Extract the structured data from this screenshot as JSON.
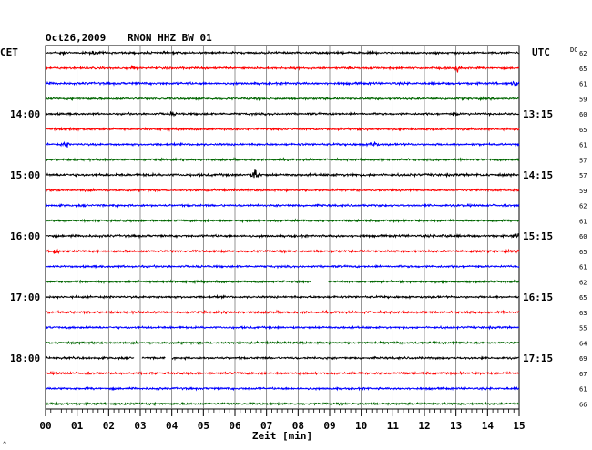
{
  "header": {
    "date": "Oct26,2009",
    "station": "RNON HHZ BW 01",
    "left_zone": "CET",
    "right_zone": "UTC",
    "dc_label": "DC"
  },
  "footer": {
    "xlabel": "Zeit [min]",
    "corner_mark": "^"
  },
  "chart_data": {
    "type": "line",
    "title": "Oct26,2009   RNON HHZ BW 01",
    "xlabel": "Zeit [min]",
    "ylabel": "",
    "xlim": [
      0,
      15
    ],
    "x_ticks": [
      "00",
      "01",
      "02",
      "03",
      "04",
      "05",
      "06",
      "07",
      "08",
      "09",
      "10",
      "11",
      "12",
      "13",
      "14",
      "15"
    ],
    "left_hour_labels": [
      {
        "row": 4,
        "label": "14:00"
      },
      {
        "row": 8,
        "label": "15:00"
      },
      {
        "row": 12,
        "label": "16:00"
      },
      {
        "row": 16,
        "label": "17:00"
      },
      {
        "row": 20,
        "label": "18:00"
      }
    ],
    "right_hour_labels": [
      {
        "row": 4,
        "label": "13:15"
      },
      {
        "row": 8,
        "label": "14:15"
      },
      {
        "row": 12,
        "label": "15:15"
      },
      {
        "row": 16,
        "label": "16:15"
      },
      {
        "row": 20,
        "label": "17:15"
      }
    ],
    "trace_colors": [
      "#000000",
      "#ff0000",
      "#0000ff",
      "#006600"
    ],
    "grid": true,
    "traces": [
      {
        "dc": "62",
        "amp": 1.0,
        "events": [
          {
            "t": 0.55,
            "a": 2.0
          },
          {
            "t": 1.5,
            "a": 1.5
          }
        ]
      },
      {
        "dc": "65",
        "amp": 1.0,
        "events": [
          {
            "t": 2.75,
            "a": 1.6
          },
          {
            "t": 13.05,
            "a": 4.5
          }
        ]
      },
      {
        "dc": "61",
        "amp": 1.1,
        "events": [
          {
            "t": 14.85,
            "a": 2.8
          }
        ]
      },
      {
        "dc": "59",
        "amp": 1.0,
        "events": []
      },
      {
        "dc": "60",
        "amp": 1.0,
        "events": [
          {
            "t": 4.0,
            "a": 2.0
          },
          {
            "t": 13.0,
            "a": 1.5
          }
        ]
      },
      {
        "dc": "65",
        "amp": 1.0,
        "events": [
          {
            "t": 0.7,
            "a": 4.5
          }
        ]
      },
      {
        "dc": "61",
        "amp": 1.0,
        "events": [
          {
            "t": 0.65,
            "a": 2.5
          },
          {
            "t": 10.4,
            "a": 5.5
          }
        ]
      },
      {
        "dc": "57",
        "amp": 1.0,
        "events": []
      },
      {
        "dc": "57",
        "amp": 1.2,
        "events": [
          {
            "t": 6.65,
            "a": 9.0
          },
          {
            "t": 9.7,
            "a": 1.5
          }
        ]
      },
      {
        "dc": "59",
        "amp": 1.0,
        "events": []
      },
      {
        "dc": "62",
        "amp": 1.0,
        "events": []
      },
      {
        "dc": "61",
        "amp": 1.0,
        "events": []
      },
      {
        "dc": "60",
        "amp": 1.1,
        "events": [
          {
            "t": 12.65,
            "a": 2.2
          },
          {
            "t": 14.9,
            "a": 4.0
          }
        ]
      },
      {
        "dc": "65",
        "amp": 1.0,
        "events": [
          {
            "t": 0.3,
            "a": 4.0
          },
          {
            "t": 13.6,
            "a": 2.5
          }
        ]
      },
      {
        "dc": "61",
        "amp": 1.0,
        "events": []
      },
      {
        "dc": "62",
        "amp": 1.0,
        "events": [],
        "gaps": [
          [
            8.4,
            8.95
          ]
        ]
      },
      {
        "dc": "65",
        "amp": 1.0,
        "events": []
      },
      {
        "dc": "63",
        "amp": 1.0,
        "events": []
      },
      {
        "dc": "55",
        "amp": 1.0,
        "events": []
      },
      {
        "dc": "64",
        "amp": 1.0,
        "events": []
      },
      {
        "dc": "69",
        "amp": 1.0,
        "events": [],
        "gaps": [
          [
            2.8,
            3.05
          ],
          [
            3.8,
            4.0
          ]
        ]
      },
      {
        "dc": "67",
        "amp": 1.0,
        "events": []
      },
      {
        "dc": "61",
        "amp": 1.0,
        "events": []
      },
      {
        "dc": "66",
        "amp": 1.0,
        "events": []
      }
    ]
  }
}
